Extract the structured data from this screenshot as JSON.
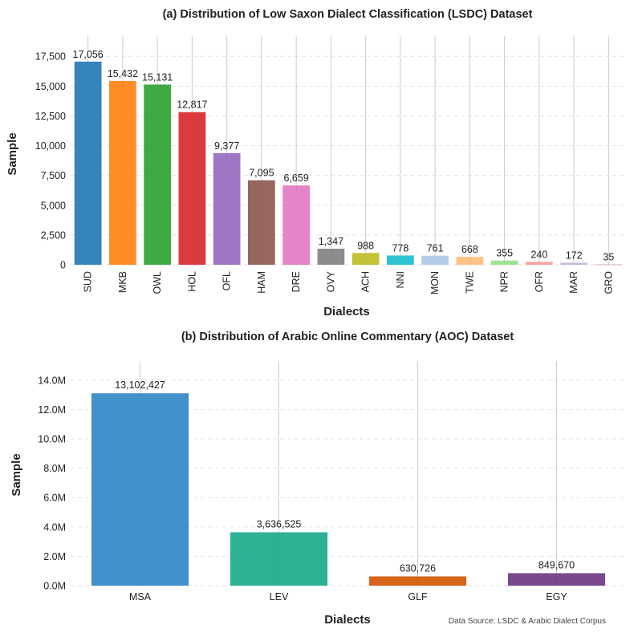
{
  "source_note": "Data Source: LSDC & Arabic Dialect Corpus",
  "chart_data": [
    {
      "type": "bar",
      "title": "(a) Distribution of Low Saxon Dialect Classification (LSDC) Dataset",
      "xlabel": "Dialects",
      "ylabel": "Sample",
      "categories": [
        "SUD",
        "MKB",
        "OWL",
        "HOL",
        "OFL",
        "HAM",
        "DRE",
        "OVY",
        "ACH",
        "NNI",
        "MON",
        "TWE",
        "NPR",
        "OFR",
        "MAR",
        "GRO"
      ],
      "values": [
        17056,
        15432,
        15131,
        12817,
        9377,
        7095,
        6659,
        1347,
        988,
        778,
        761,
        668,
        355,
        240,
        172,
        35
      ],
      "value_labels": [
        "17,056",
        "15,432",
        "15,131",
        "12,817",
        "9,377",
        "7,095",
        "6,659",
        "1,347",
        "988",
        "778",
        "761",
        "668",
        "355",
        "240",
        "172",
        "35"
      ],
      "colors": [
        "#1f77b4",
        "#ff7f0e",
        "#2ca02c",
        "#d62728",
        "#9467bd",
        "#8c564b",
        "#e377c2",
        "#7f7f7f",
        "#bcbd22",
        "#17becf",
        "#aec7e8",
        "#ffbb78",
        "#98df8a",
        "#ff9896",
        "#c5b0d5",
        "#c49c94"
      ],
      "y_ticks": [
        0,
        2500,
        5000,
        7500,
        10000,
        12500,
        15000,
        17500
      ],
      "y_tick_labels": [
        "0",
        "2,500",
        "5,000",
        "7,500",
        "10,000",
        "12,500",
        "15,000",
        "17,500"
      ],
      "ylim": [
        0,
        19200
      ],
      "grid": true
    },
    {
      "type": "bar",
      "title": "(b) Distribution of Arabic Online Commentary (AOC) Dataset",
      "xlabel": "Dialects",
      "ylabel": "Sample",
      "categories": [
        "MSA",
        "LEV",
        "GLF",
        "EGY"
      ],
      "values": [
        13102427,
        3636525,
        630726,
        849670
      ],
      "value_labels": [
        "13,102,427",
        "3,636,525",
        "630,726",
        "849,670"
      ],
      "colors": [
        "#2d85c4",
        "#16a98a",
        "#d35400",
        "#6c3483"
      ],
      "y_ticks": [
        0,
        2000000,
        4000000,
        6000000,
        8000000,
        10000000,
        12000000,
        14000000
      ],
      "y_tick_labels": [
        "0.0M",
        "2.0M",
        "4.0M",
        "6.0M",
        "8.0M",
        "10.0M",
        "12.0M",
        "14.0M"
      ],
      "ylim": [
        0,
        15300000
      ],
      "grid": true
    }
  ]
}
